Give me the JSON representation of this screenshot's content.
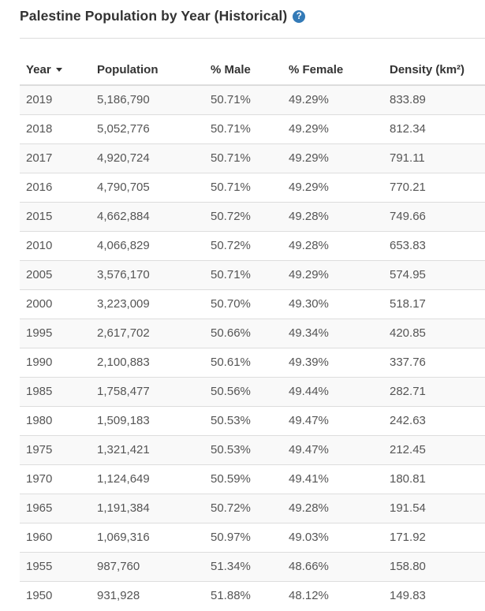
{
  "header": {
    "title": "Palestine Population by Year (Historical)",
    "help_icon_glyph": "?"
  },
  "table": {
    "columns": [
      {
        "key": "year",
        "label": "Year",
        "sortable": true,
        "sort": "desc"
      },
      {
        "key": "population",
        "label": "Population",
        "sortable": true
      },
      {
        "key": "male",
        "label": "% Male",
        "sortable": true
      },
      {
        "key": "female",
        "label": "% Female",
        "sortable": true
      },
      {
        "key": "density",
        "label": "Density (km²)",
        "sortable": true
      }
    ],
    "rows": [
      [
        "2019",
        "5,186,790",
        "50.71%",
        "49.29%",
        "833.89"
      ],
      [
        "2018",
        "5,052,776",
        "50.71%",
        "49.29%",
        "812.34"
      ],
      [
        "2017",
        "4,920,724",
        "50.71%",
        "49.29%",
        "791.11"
      ],
      [
        "2016",
        "4,790,705",
        "50.71%",
        "49.29%",
        "770.21"
      ],
      [
        "2015",
        "4,662,884",
        "50.72%",
        "49.28%",
        "749.66"
      ],
      [
        "2010",
        "4,066,829",
        "50.72%",
        "49.28%",
        "653.83"
      ],
      [
        "2005",
        "3,576,170",
        "50.71%",
        "49.29%",
        "574.95"
      ],
      [
        "2000",
        "3,223,009",
        "50.70%",
        "49.30%",
        "518.17"
      ],
      [
        "1995",
        "2,617,702",
        "50.66%",
        "49.34%",
        "420.85"
      ],
      [
        "1990",
        "2,100,883",
        "50.61%",
        "49.39%",
        "337.76"
      ],
      [
        "1985",
        "1,758,477",
        "50.56%",
        "49.44%",
        "282.71"
      ],
      [
        "1980",
        "1,509,183",
        "50.53%",
        "49.47%",
        "242.63"
      ],
      [
        "1975",
        "1,321,421",
        "50.53%",
        "49.47%",
        "212.45"
      ],
      [
        "1970",
        "1,124,649",
        "50.59%",
        "49.41%",
        "180.81"
      ],
      [
        "1965",
        "1,191,384",
        "50.72%",
        "49.28%",
        "191.54"
      ],
      [
        "1960",
        "1,069,316",
        "50.97%",
        "49.03%",
        "171.92"
      ],
      [
        "1955",
        "987,760",
        "51.34%",
        "48.66%",
        "158.80"
      ],
      [
        "1950",
        "931,928",
        "51.88%",
        "48.12%",
        "149.83"
      ]
    ]
  },
  "colors": {
    "accent": "#337ab7",
    "stripe": "#f9f9f9",
    "border": "#dddddd",
    "heading_text": "#333333",
    "cell_text": "#555555"
  }
}
